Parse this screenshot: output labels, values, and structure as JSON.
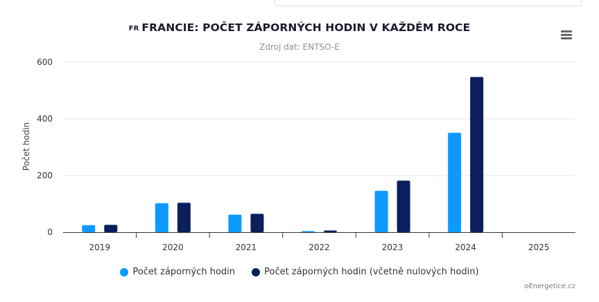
{
  "header": {
    "flag_code": "FR",
    "title": "FRANCIE: POČET ZÁPORNÝCH HODIN V KAŽDÉM ROCE",
    "subtitle": "Zdroj dat: ENTSO-E",
    "menu_icon": "hamburger-menu-icon"
  },
  "credit": "oEnergetice.cz",
  "chart_data": {
    "type": "bar",
    "categories": [
      "2019",
      "2020",
      "2021",
      "2022",
      "2023",
      "2024",
      "2025"
    ],
    "series": [
      {
        "name": "Počet záporných hodin",
        "color": "#0d9aff",
        "values": [
          25,
          102,
          62,
          4,
          146,
          351,
          0
        ]
      },
      {
        "name": "Počet záporných hodin (včetně nulových hodin)",
        "color": "#0a1f5c",
        "values": [
          26,
          104,
          65,
          6,
          182,
          548,
          0
        ]
      }
    ],
    "ylabel": "Počet hodin",
    "ylim": [
      0,
      600
    ],
    "yticks": [
      "0",
      "200",
      "400",
      "600"
    ],
    "grid": true,
    "legend_position": "bottom-center"
  }
}
